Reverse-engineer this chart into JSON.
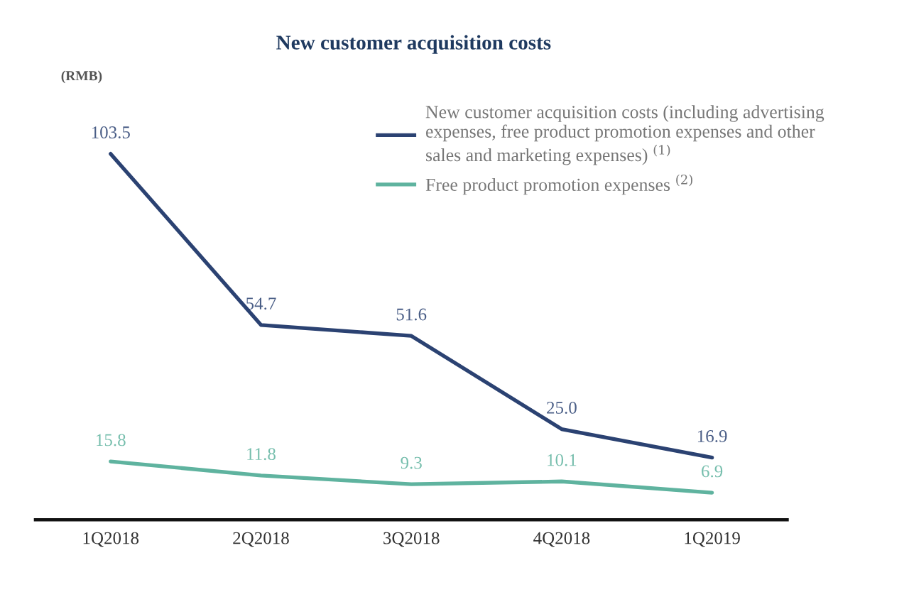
{
  "chart_data": {
    "type": "line",
    "title": "New customer acquisition costs",
    "annotations": [
      "(RMB)"
    ],
    "categories": [
      "1Q2018",
      "2Q2018",
      "3Q2018",
      "4Q2018",
      "1Q2019"
    ],
    "series": [
      {
        "name": "New customer acquisition costs (including advertising\nexpenses, free product promotion expenses and other\nsales and marketing expenses) $^{(1)}$",
        "color": "#2b4272",
        "values": [
          103.5,
          54.7,
          51.6,
          25.0,
          16.9
        ],
        "value_labels": [
          "103.5",
          "54.7",
          "51.6",
          "25.0",
          "16.9"
        ]
      },
      {
        "name": "Free product promotion expenses $^{(2)}$",
        "color": "#5fb39f",
        "values": [
          15.8,
          11.8,
          9.3,
          10.1,
          6.9
        ],
        "value_labels": [
          "15.8",
          "11.8",
          "9.3",
          "10.1",
          "6.9"
        ]
      }
    ],
    "legend": "top right",
    "marker": "none",
    "tick_labels": "x"
  }
}
